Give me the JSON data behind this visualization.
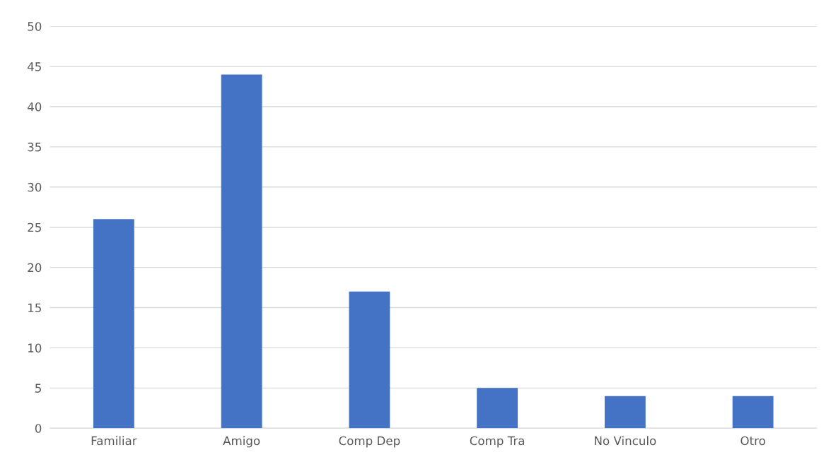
{
  "chart_data": {
    "type": "bar",
    "categories": [
      "Familiar",
      "Amigo",
      "Comp Dep",
      "Comp Tra",
      "No Vinculo",
      "Otro"
    ],
    "values": [
      26,
      44,
      17,
      5,
      4,
      4
    ],
    "color": "#4472c4",
    "ylim": [
      0,
      50
    ],
    "yticks": [
      0,
      5,
      10,
      15,
      20,
      25,
      30,
      35,
      40,
      45,
      50
    ],
    "grid": "y",
    "legend": false
  }
}
